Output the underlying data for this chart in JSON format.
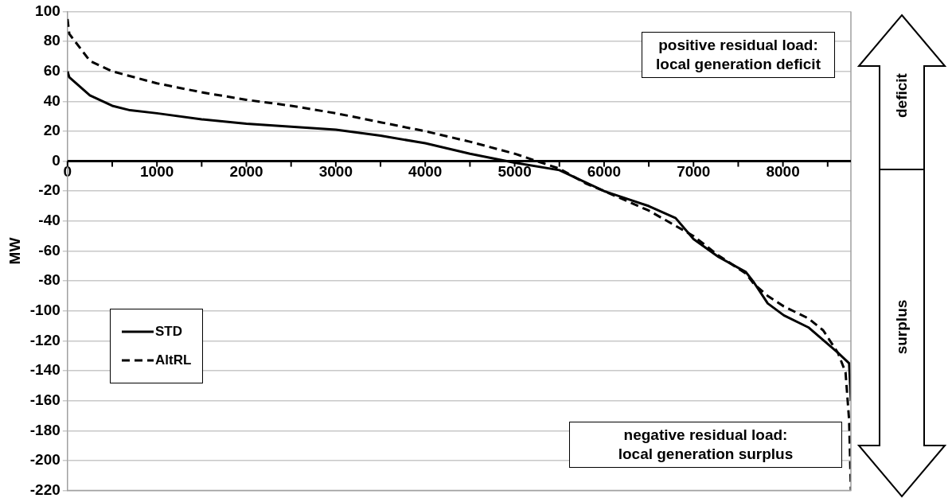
{
  "chart_data": {
    "type": "line",
    "ylabel": "MW",
    "xlim": [
      0,
      8760
    ],
    "ylim": [
      -220,
      100
    ],
    "xticks": [
      0,
      {
        "value": 500,
        "label": null
      },
      1000,
      {
        "value": 1500,
        "label": null
      },
      2000,
      {
        "value": 2500,
        "label": null
      },
      3000,
      {
        "value": 3500,
        "label": null
      },
      4000,
      {
        "value": 4500,
        "label": null
      },
      5000,
      {
        "value": 5500,
        "label": null
      },
      6000,
      {
        "value": 6500,
        "label": null
      },
      7000,
      {
        "value": 7500,
        "label": null
      },
      8000,
      {
        "value": 8500,
        "label": null
      }
    ],
    "yticks": [
      -220,
      -200,
      -180,
      -160,
      -140,
      -120,
      -100,
      -80,
      -60,
      -40,
      -20,
      0,
      20,
      40,
      60,
      80,
      100
    ],
    "grid": "y",
    "legend": "left",
    "marker": "none",
    "series": [
      {
        "name": "STD",
        "color": "#000000",
        "line_style": "solid",
        "x": [
          0,
          20,
          250,
          500,
          700,
          1000,
          1500,
          2000,
          2500,
          3000,
          3500,
          4000,
          4500,
          5000,
          5500,
          6000,
          6500,
          6800,
          7000,
          7280,
          7585,
          7675,
          7830,
          8010,
          8284,
          8615,
          8740,
          8760
        ],
        "values": [
          60,
          56,
          44,
          37,
          34,
          32,
          28,
          25,
          23,
          21,
          17,
          12,
          5,
          -1,
          -6,
          -20,
          -30,
          -38,
          -52,
          -64,
          -74,
          -81,
          -95,
          -103,
          -111,
          -128,
          -135,
          -160
        ]
      },
      {
        "name": "AltRL",
        "color": "#000000",
        "line_style": "dashed",
        "x": [
          0,
          20,
          250,
          500,
          1000,
          1500,
          2000,
          2500,
          3000,
          3500,
          4000,
          4500,
          5000,
          5500,
          5800,
          6000,
          6500,
          7000,
          7280,
          7585,
          7675,
          7830,
          8010,
          8284,
          8450,
          8615,
          8700,
          8740,
          8760
        ],
        "values": [
          95,
          85,
          67,
          60,
          52,
          46,
          41,
          37,
          32,
          26,
          20,
          13,
          5,
          -5,
          -15,
          -20,
          -33,
          -50,
          -63,
          -75,
          -82,
          -90,
          -97,
          -105,
          -113,
          -128,
          -141,
          -173,
          -220
        ]
      }
    ],
    "annotations": [
      "positive residual load:\nlocal generation deficit",
      "negative residual load:\nlocal generation surplus",
      "deficit",
      "surplus"
    ]
  }
}
